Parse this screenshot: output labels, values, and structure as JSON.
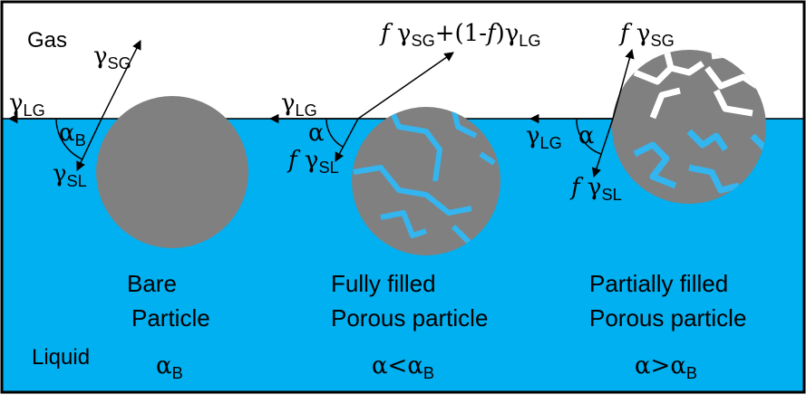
{
  "regions": {
    "gas": "Gas",
    "liquid": "Liquid"
  },
  "particles": [
    {
      "forces": [
        [
          {
            "text": "γ"
          },
          {
            "sub": "SG"
          }
        ],
        [
          {
            "text": "γ"
          },
          {
            "sub": "LG"
          }
        ],
        [
          {
            "text": "α"
          },
          {
            "sub": "B"
          }
        ],
        [
          {
            "text": "γ"
          },
          {
            "sub": "SL"
          }
        ]
      ],
      "caption": [
        "Bare",
        "Particle"
      ],
      "angle": [
        {
          "text": "α"
        },
        {
          "sub": "B"
        }
      ]
    },
    {
      "forces": [
        [
          {
            "italic": "f"
          },
          {
            "text": " γ"
          },
          {
            "sub": "SG"
          },
          {
            "text": "+(1-"
          },
          {
            "italic": "f"
          },
          {
            "text": ")γ"
          },
          {
            "sub": "LG"
          }
        ],
        [
          {
            "text": "γ"
          },
          {
            "sub": "LG"
          }
        ],
        [
          {
            "text": "α"
          }
        ],
        [
          {
            "italic": "f"
          },
          {
            "text": " γ"
          },
          {
            "sub": "SL"
          }
        ]
      ],
      "caption": [
        "Fully filled",
        "Porous particle"
      ],
      "angle": [
        {
          "text": "α<α"
        },
        {
          "sub": "B"
        }
      ]
    },
    {
      "forces": [
        [
          {
            "italic": "f"
          },
          {
            "text": " γ"
          },
          {
            "sub": "SG"
          }
        ],
        [
          {
            "text": "γ"
          },
          {
            "sub": "LG"
          }
        ],
        [
          {
            "text": "α"
          }
        ],
        [
          {
            "italic": "f"
          },
          {
            "text": " γ"
          },
          {
            "sub": "SL"
          }
        ]
      ],
      "caption": [
        "Partially filled",
        "Porous particle"
      ],
      "angle": [
        {
          "text": "α>α"
        },
        {
          "sub": "B"
        }
      ]
    }
  ]
}
